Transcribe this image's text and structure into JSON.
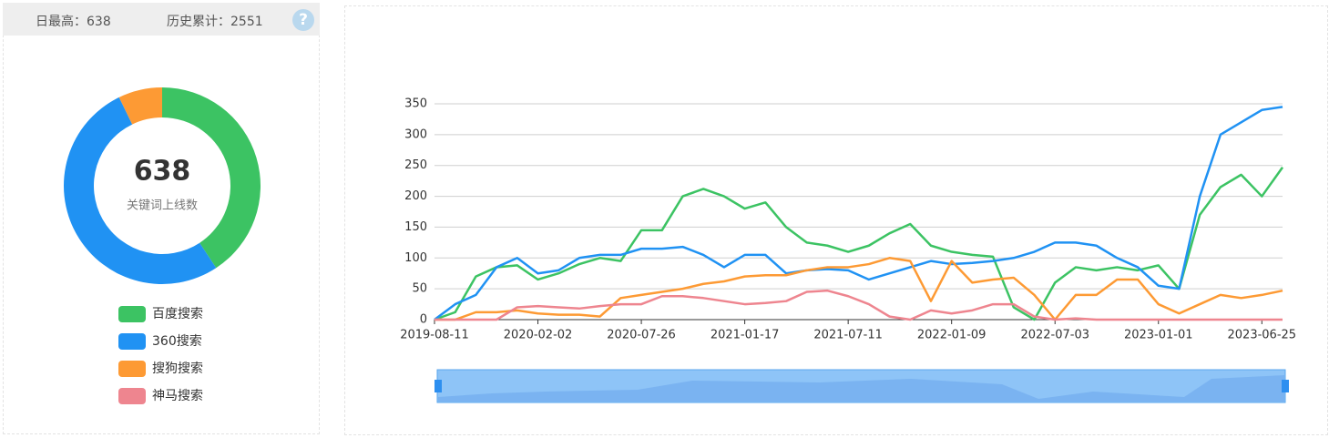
{
  "header": {
    "items": [
      {
        "label": "日最高：",
        "value": 638
      },
      {
        "label": "历史累计：",
        "value": 2551
      }
    ]
  },
  "chart_data": [
    {
      "type": "pie",
      "center_value": 638,
      "center_label": "关键词上线数",
      "categories": [
        "百度搜索",
        "360搜索",
        "搜狗搜索",
        "神马搜索"
      ],
      "values": [
        260,
        332,
        46,
        0
      ],
      "colors": [
        "#3cc363",
        "#2092f3",
        "#fd9a34",
        "#ee858f"
      ]
    },
    {
      "type": "line",
      "categories": [
        "2019-08-11",
        null,
        null,
        null,
        null,
        "2020-02-02",
        null,
        null,
        null,
        null,
        "2020-07-26",
        null,
        null,
        null,
        null,
        "2021-01-17",
        null,
        null,
        null,
        null,
        "2021-07-11",
        null,
        null,
        null,
        null,
        "2022-01-09",
        null,
        null,
        null,
        null,
        "2022-07-03",
        null,
        null,
        null,
        null,
        "2023-01-01",
        null,
        null,
        null,
        null,
        "2023-06-25",
        null
      ],
      "series": [
        {
          "name": "百度搜索",
          "color": "#3cc363",
          "values": [
            0,
            12,
            70,
            85,
            88,
            65,
            75,
            90,
            100,
            95,
            145,
            145,
            200,
            212,
            200,
            180,
            190,
            150,
            125,
            120,
            110,
            120,
            140,
            155,
            120,
            110,
            105,
            102,
            20,
            0,
            60,
            85,
            80,
            85,
            80,
            88,
            50,
            170,
            215,
            235,
            200,
            247
          ]
        },
        {
          "name": "360搜索",
          "color": "#2092f3",
          "values": [
            0,
            25,
            40,
            85,
            100,
            75,
            80,
            100,
            105,
            105,
            115,
            115,
            118,
            105,
            85,
            105,
            105,
            75,
            80,
            82,
            80,
            65,
            75,
            85,
            95,
            90,
            92,
            95,
            100,
            110,
            125,
            125,
            120,
            100,
            85,
            55,
            50,
            200,
            300,
            320,
            340,
            345
          ]
        },
        {
          "name": "搜狗搜索",
          "color": "#fd9a34",
          "values": [
            0,
            0,
            12,
            12,
            15,
            10,
            8,
            8,
            5,
            35,
            40,
            45,
            50,
            58,
            62,
            70,
            72,
            72,
            80,
            85,
            85,
            90,
            100,
            95,
            30,
            95,
            60,
            65,
            68,
            40,
            0,
            40,
            40,
            65,
            65,
            25,
            10,
            25,
            40,
            35,
            40,
            47
          ]
        },
        {
          "name": "神马搜索",
          "color": "#ee858f",
          "values": [
            0,
            0,
            0,
            0,
            20,
            22,
            20,
            18,
            22,
            25,
            25,
            38,
            38,
            35,
            30,
            25,
            27,
            30,
            45,
            47,
            38,
            25,
            5,
            0,
            15,
            10,
            15,
            25,
            25,
            5,
            0,
            2,
            0,
            0,
            0,
            0,
            0,
            0,
            0,
            0,
            0,
            0
          ]
        }
      ],
      "ylim": [
        0,
        350
      ],
      "yticks": [
        0,
        50,
        100,
        150,
        200,
        250,
        300,
        350
      ],
      "grid": true
    }
  ]
}
